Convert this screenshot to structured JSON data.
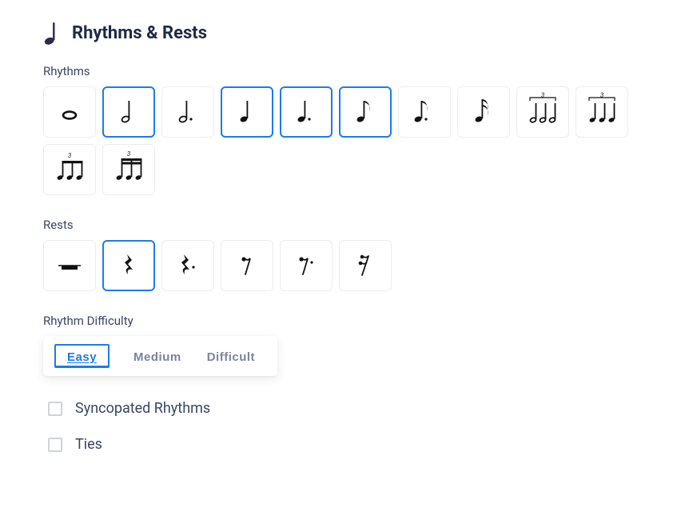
{
  "colors": {
    "text_dark": "#1f2a44",
    "text_mid": "#3a4660",
    "text_muted": "#7c8499",
    "border_light": "#e9ecef",
    "accent": "#1e7af0",
    "background": "#ffffff",
    "icon_title": "#2b2b4a",
    "glyph_color": "#111111"
  },
  "header": {
    "title": "Rhythms & Rests"
  },
  "labels": {
    "rhythms": "Rhythms",
    "rests": "Rests",
    "difficulty": "Rhythm Difficulty"
  },
  "rhythms": [
    {
      "id": "whole-note",
      "selected": false,
      "icon": "whole"
    },
    {
      "id": "half-note",
      "selected": true,
      "icon": "half"
    },
    {
      "id": "dotted-half-note",
      "selected": false,
      "icon": "half-dot"
    },
    {
      "id": "quarter-note",
      "selected": true,
      "icon": "quarter"
    },
    {
      "id": "dotted-quarter-note",
      "selected": true,
      "icon": "quarter-dot"
    },
    {
      "id": "eighth-note",
      "selected": true,
      "icon": "eighth"
    },
    {
      "id": "dotted-eighth-note",
      "selected": false,
      "icon": "eighth-dot"
    },
    {
      "id": "sixteenth-note",
      "selected": false,
      "icon": "sixteenth"
    },
    {
      "id": "half-triplet",
      "selected": false,
      "icon": "halftriplet"
    },
    {
      "id": "quarter-triplet",
      "selected": false,
      "icon": "qtriplet"
    },
    {
      "id": "eighth-triplet",
      "selected": false,
      "icon": "etriplet"
    },
    {
      "id": "sixteenth-triplet",
      "selected": false,
      "icon": "striplet"
    }
  ],
  "rests": [
    {
      "id": "whole-half-rest",
      "selected": false,
      "icon": "wholerest"
    },
    {
      "id": "quarter-rest",
      "selected": true,
      "icon": "quarterrest"
    },
    {
      "id": "dotted-quarter-rest",
      "selected": false,
      "icon": "quarterrest-dot"
    },
    {
      "id": "eighth-rest",
      "selected": false,
      "icon": "eighthrest"
    },
    {
      "id": "dotted-eighth-rest",
      "selected": false,
      "icon": "eighthrest-dot"
    },
    {
      "id": "sixteenth-rest",
      "selected": false,
      "icon": "sixteenthrest"
    }
  ],
  "difficulty": {
    "options": [
      {
        "id": "easy",
        "label": "Easy",
        "selected": true
      },
      {
        "id": "medium",
        "label": "Medium",
        "selected": false
      },
      {
        "id": "difficult",
        "label": "Difficult",
        "selected": false
      }
    ]
  },
  "checkboxes": [
    {
      "id": "syncopated",
      "label": "Syncopated Rhythms",
      "checked": false
    },
    {
      "id": "ties",
      "label": "Ties",
      "checked": false
    }
  ]
}
